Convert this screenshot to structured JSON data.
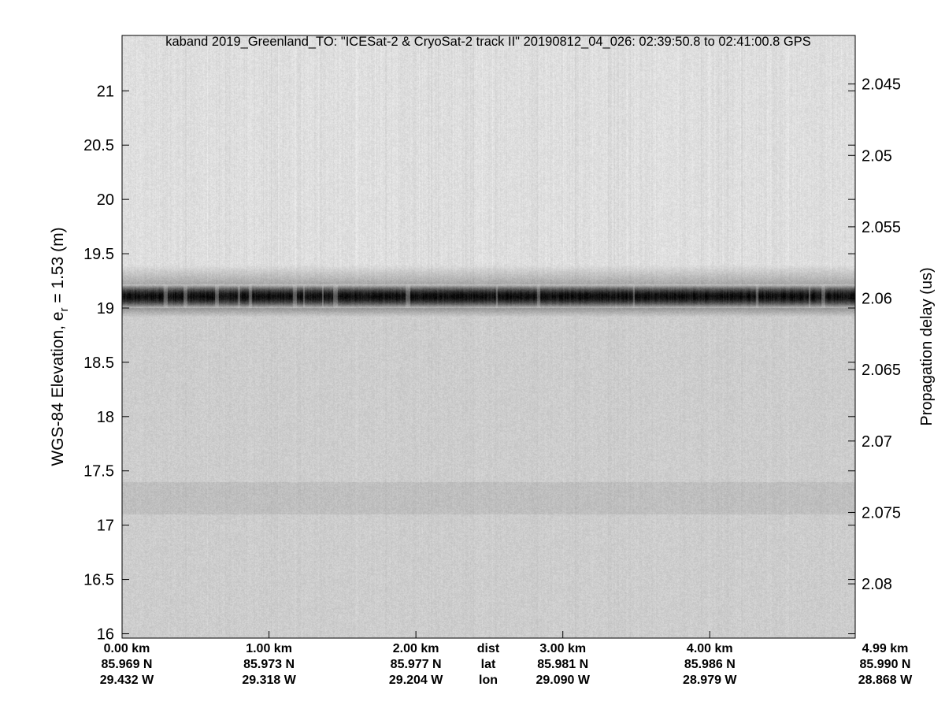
{
  "chart_data": {
    "type": "heatmap",
    "title": "kaband 2019_Greenland_TO: \"ICESat-2 & CryoSat-2 track II\"  20190812_04_026: 02:39:50.8 to 02:41:00.8 GPS",
    "colormap": "grayscale",
    "ylabel_left": "WGS-84 Elevation, e",
    "ylabel_left_sub": "r",
    "ylabel_left_suffix": " = 1.53 (m)",
    "ylabel_right": "Propagation delay (us)",
    "ylim_left": [
      15.96,
      21.51
    ],
    "ylim_right": [
      2.0416,
      2.0838
    ],
    "yticks_left": [
      "16",
      "16.5",
      "17",
      "17.5",
      "18",
      "18.5",
      "19",
      "19.5",
      "20",
      "20.5",
      "21"
    ],
    "yticks_right": [
      "2.045",
      "2.05",
      "2.055",
      "2.06",
      "2.065",
      "2.07",
      "2.075",
      "2.08"
    ],
    "x_row_labels": [
      "dist",
      "lat",
      "lon"
    ],
    "x_ticks": [
      {
        "dist": "0.00 km",
        "lat": "85.969 N",
        "lon": "29.432 W"
      },
      {
        "dist": "1.00 km",
        "lat": "85.973 N",
        "lon": "29.318 W"
      },
      {
        "dist": "2.00 km",
        "lat": "85.977 N",
        "lon": "29.204 W"
      },
      {
        "dist": "3.00 km",
        "lat": "85.981 N",
        "lon": "29.090 W"
      },
      {
        "dist": "4.00 km",
        "lat": "85.986 N",
        "lon": "28.979 W"
      },
      {
        "dist": "4.99 km",
        "lat": "85.990 N",
        "lon": "28.868 W"
      }
    ],
    "xlim_km": [
      0,
      4.99
    ],
    "strong_return_elevation_m": [
      19.0,
      19.22
    ],
    "weak_return_elevation_m": [
      17.1,
      17.4
    ],
    "grid": false
  }
}
